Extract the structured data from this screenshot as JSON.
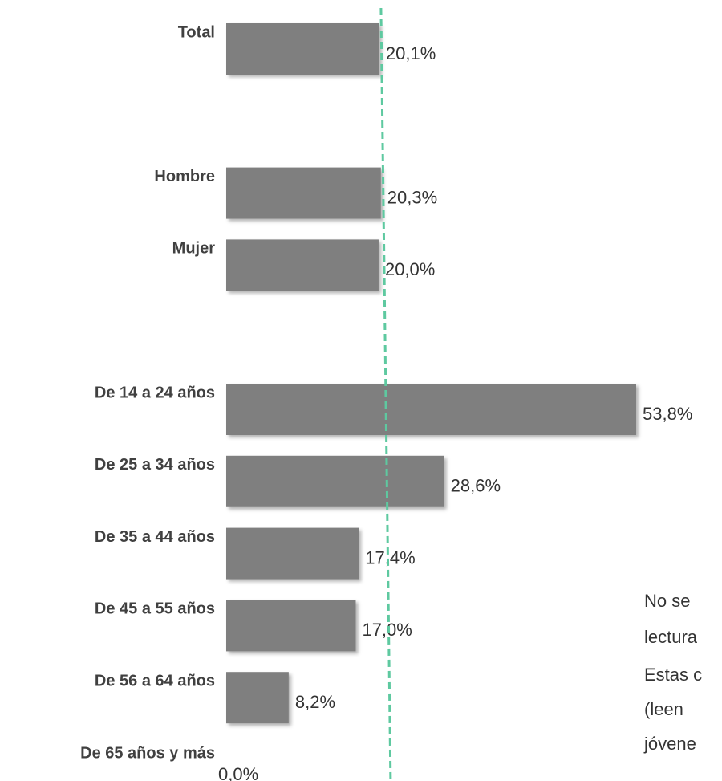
{
  "chart_data": {
    "type": "bar",
    "orientation": "horizontal",
    "categories": [
      "Total",
      null,
      "Hombre",
      "Mujer",
      null,
      "De 14 a 24 años",
      "De 25 a 34 años",
      "De 35 a 44 años",
      "De 45 a 55 años",
      "De 56 a 64 años",
      "De 65 años y más"
    ],
    "values": [
      20.1,
      null,
      20.3,
      20.0,
      null,
      53.8,
      28.6,
      17.4,
      17.0,
      8.2,
      0.0
    ],
    "value_labels": [
      "20,1%",
      null,
      "20,3%",
      "20,0%",
      null,
      "53,8%",
      "28,6%",
      "17,4%",
      "17,0%",
      "8,2%",
      "0,0%"
    ],
    "color": "#7f7f7f",
    "reference_line_color": "#5ec9a0",
    "side_text": [
      "No se",
      "lectura",
      "Estas c",
      "(leen",
      "jóvene"
    ]
  }
}
